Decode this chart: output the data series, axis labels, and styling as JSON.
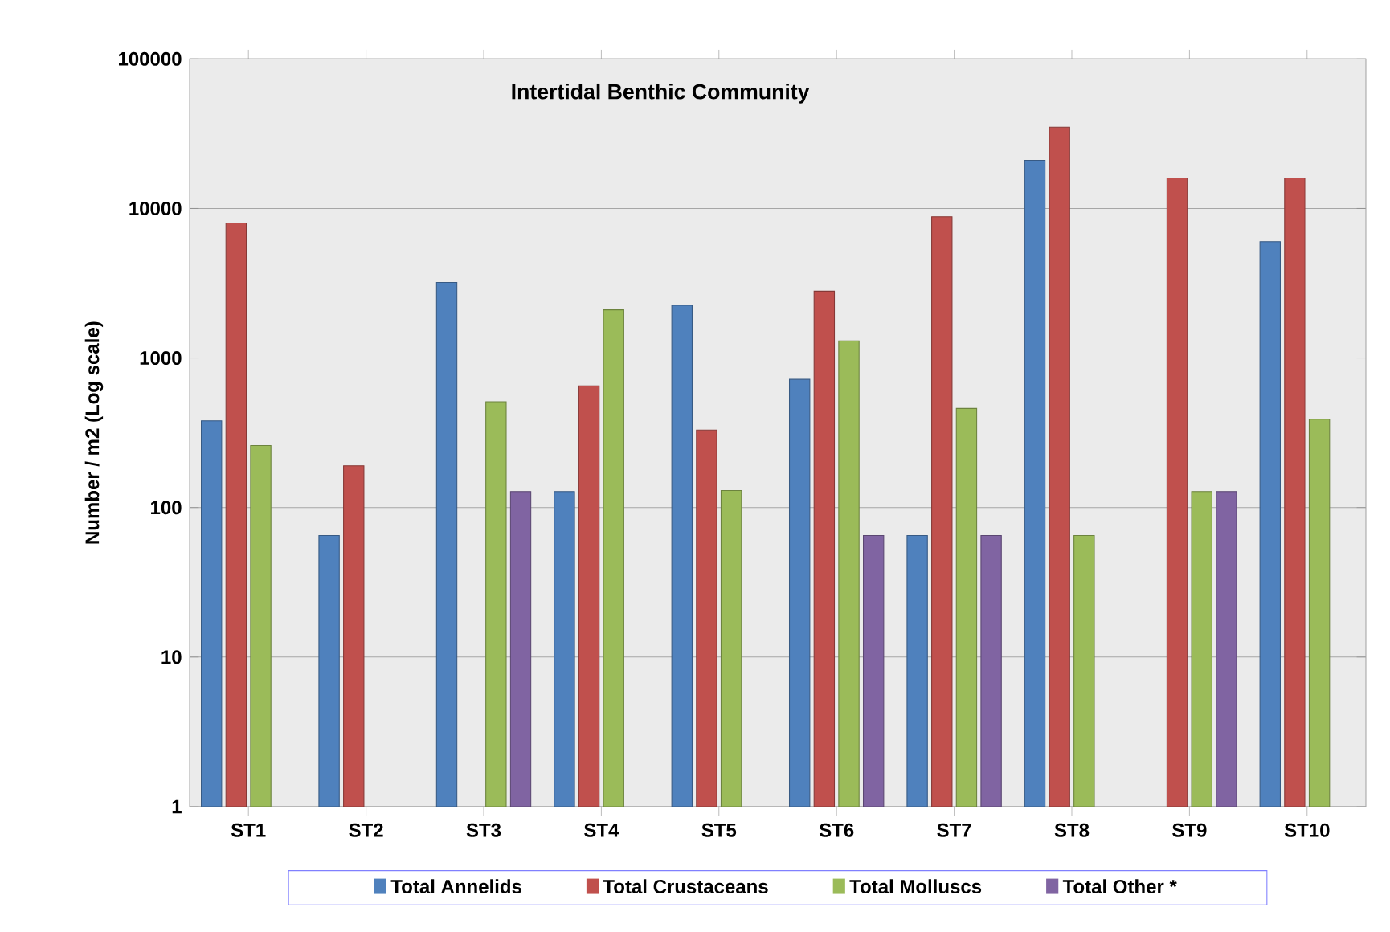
{
  "chart_data": {
    "type": "bar",
    "title": "Intertidal Benthic Community",
    "ylabel": "Number / m2   (Log scale)",
    "categories": [
      "ST1",
      "ST2",
      "ST3",
      "ST4",
      "ST5",
      "ST6",
      "ST7",
      "ST8",
      "ST9",
      "ST10"
    ],
    "series": [
      {
        "name": "Total Annelids",
        "color": "#4f81bd",
        "values": [
          380,
          65,
          3200,
          128,
          2250,
          720,
          65,
          21000,
          null,
          6000
        ]
      },
      {
        "name": "Total Crustaceans",
        "color": "#c0504d",
        "values": [
          8000,
          190,
          null,
          650,
          330,
          2800,
          8800,
          35000,
          16000,
          16000
        ]
      },
      {
        "name": "Total Molluscs",
        "color": "#9bbb59",
        "values": [
          260,
          null,
          510,
          2100,
          130,
          1300,
          460,
          65,
          128,
          390
        ]
      },
      {
        "name": "Total Other *",
        "color": "#8064a2",
        "values": [
          null,
          null,
          128,
          null,
          null,
          65,
          65,
          null,
          128,
          null
        ]
      }
    ],
    "log": "y",
    "ylim": [
      1,
      100000
    ],
    "yticks": [
      1,
      10,
      100,
      1000,
      10000,
      100000
    ],
    "grid": "y",
    "legend": "bottom"
  }
}
